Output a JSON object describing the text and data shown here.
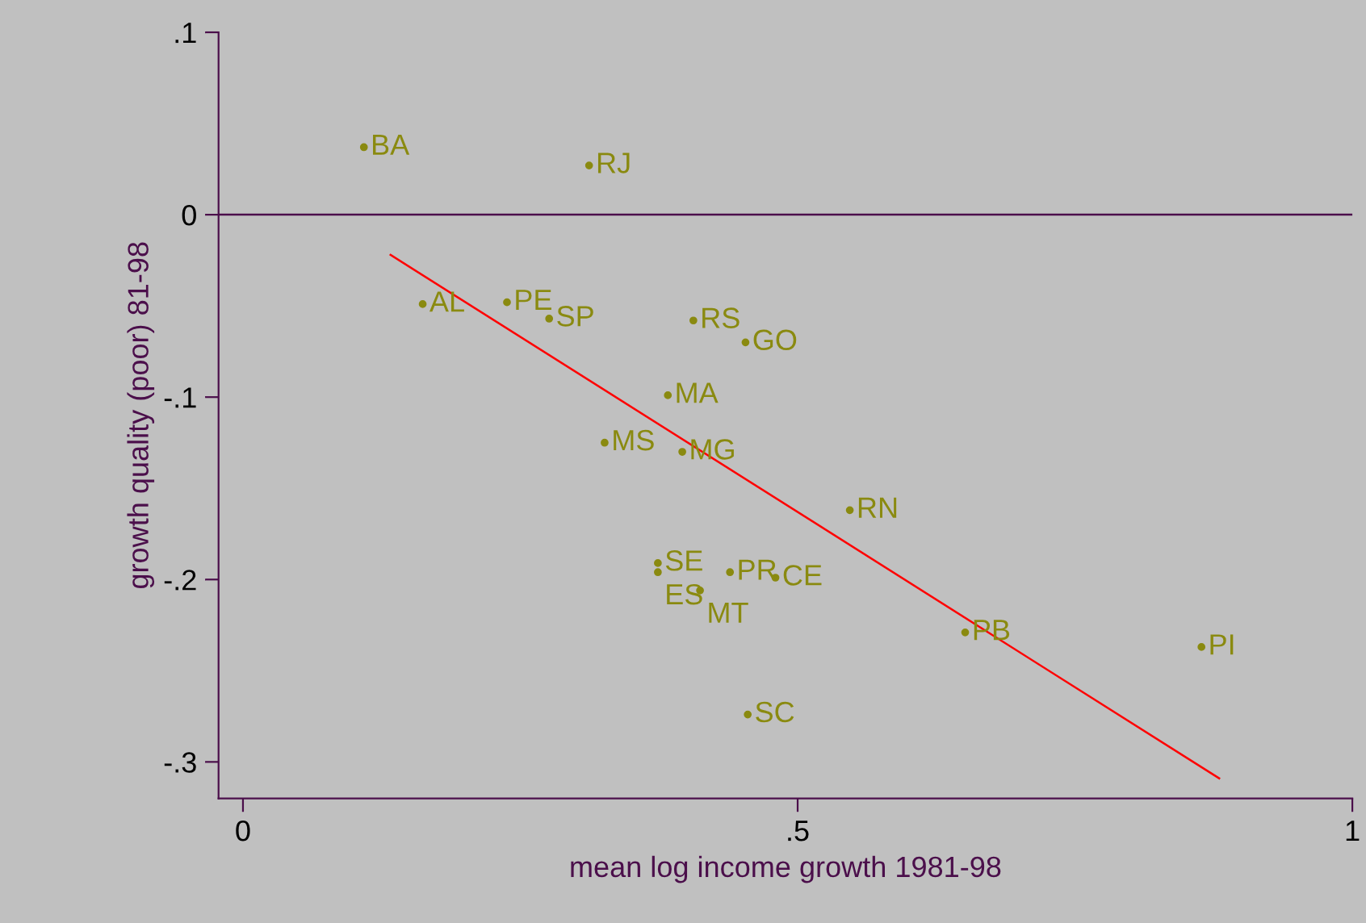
{
  "chart_data": {
    "type": "scatter",
    "xlabel": "mean log income growth 1981-98",
    "ylabel": "growth quality (poor) 81-98",
    "xlim": [
      -0.022,
      1.0
    ],
    "ylim": [
      -0.32,
      0.1
    ],
    "xticks": [
      0,
      {
        "value": 0.5,
        "label": ".5"
      },
      1
    ],
    "yticks": [
      {
        "value": -0.3,
        "label": "-.3"
      },
      {
        "value": -0.2,
        "label": "-.2"
      },
      {
        "value": -0.1,
        "label": "-.1"
      },
      0,
      {
        "value": 0.1,
        "label": ".1"
      }
    ],
    "grid": false,
    "series": [
      {
        "marker": "circle",
        "color": "#8a8a10",
        "x": [
          0.109,
          0.312,
          0.162,
          0.238,
          0.276,
          0.406,
          0.453,
          0.383,
          0.326,
          0.396,
          0.547,
          0.374,
          0.374,
          0.439,
          0.48,
          0.412,
          0.651,
          0.864,
          0.455
        ],
        "values": [
          0.037,
          0.027,
          -0.049,
          -0.048,
          -0.057,
          -0.058,
          -0.07,
          -0.099,
          -0.125,
          -0.13,
          -0.162,
          -0.191,
          -0.196,
          -0.196,
          -0.199,
          -0.206,
          -0.229,
          -0.237,
          -0.274
        ],
        "value_labels": [
          "BA",
          "RJ",
          "AL",
          "PE",
          "SP",
          "RS",
          "GO",
          "MA",
          "MS",
          "MG",
          "RN",
          "SE",
          "ES",
          "PR",
          "CE",
          "MT",
          "PB",
          "PI",
          "SC"
        ]
      },
      {
        "type": "line",
        "color": "#ff0000",
        "x": [
          0.133,
          0.88
        ],
        "values": [
          -0.022,
          -0.309
        ]
      }
    ],
    "ref_lines": [
      {
        "axis": "y",
        "value": 0,
        "color": "#4b0f4b"
      }
    ]
  }
}
